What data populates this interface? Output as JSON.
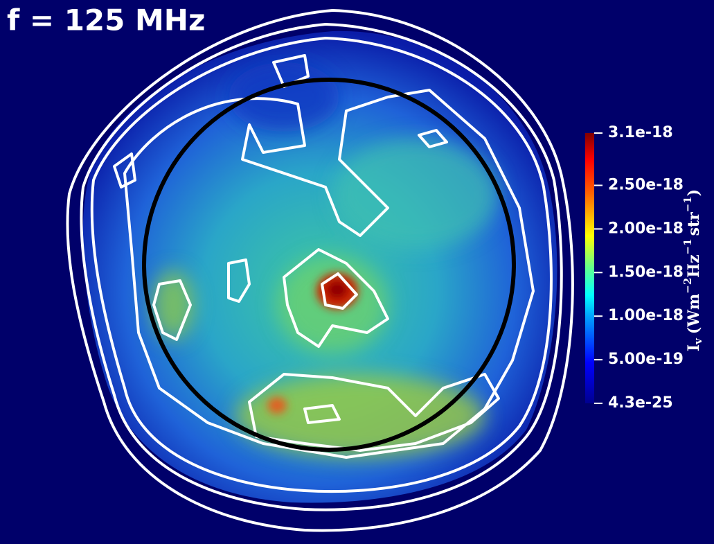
{
  "title": "f = 125 MHz",
  "colorbar": {
    "lim": [
      4.3e-25,
      3.1e-18
    ],
    "ticks": [
      {
        "value": 4.3e-25,
        "label": "4.3e-25"
      },
      {
        "value": 5e-19,
        "label": "5.00e-19"
      },
      {
        "value": 1e-18,
        "label": "1.00e-18"
      },
      {
        "value": 1.5e-18,
        "label": "1.50e-18"
      },
      {
        "value": 2e-18,
        "label": "2.00e-18"
      },
      {
        "value": 2.5e-18,
        "label": "2.50e-18"
      },
      {
        "value": 3.1e-18,
        "label": "3.1e-18"
      }
    ],
    "label_parts": [
      "I",
      "v",
      "(Wm",
      "−2",
      "Hz",
      "−1",
      "str",
      "−1",
      ")"
    ]
  }
}
